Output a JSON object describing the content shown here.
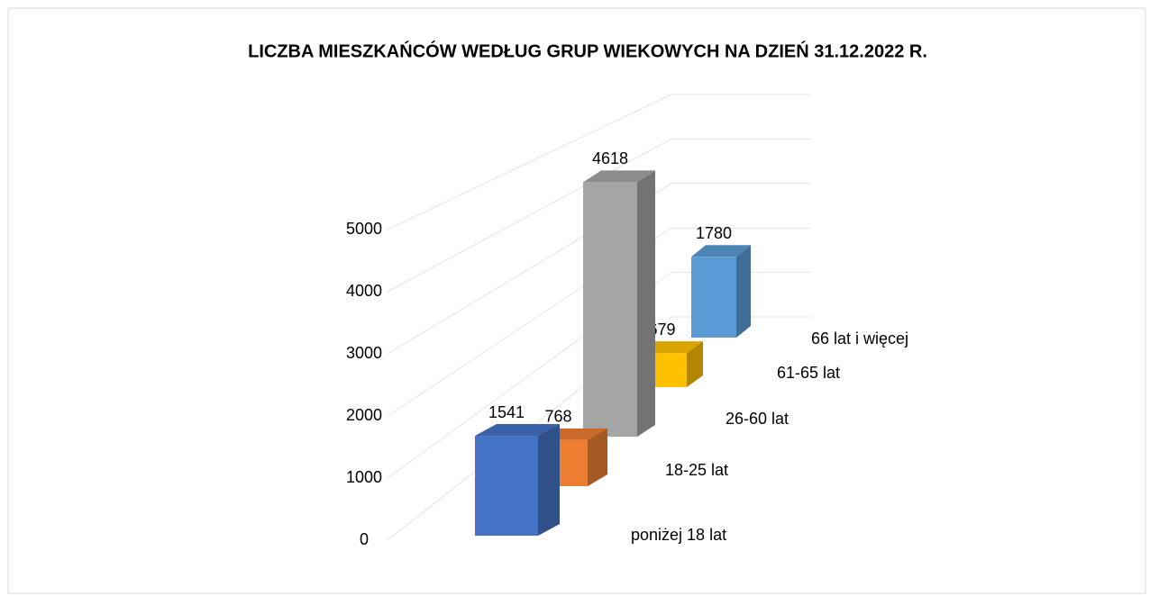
{
  "chart_data": {
    "type": "bar3d",
    "title": "LICZBA MIESZKAŃCÓW  WEDŁUG GRUP WIEKOWYCH NA DZIEŃ 31.12.2022 R.",
    "categories": [
      "poniżej 18 lat",
      "18-25 lat",
      "26-60 lat",
      "61-65 lat",
      "66 lat i więcej"
    ],
    "values": [
      1541,
      768,
      4618,
      679,
      1780
    ],
    "colors": [
      "#4472c4",
      "#ed7d31",
      "#a5a5a5",
      "#ffc000",
      "#5b9bd5"
    ],
    "ylim": [
      0,
      5000
    ],
    "yticks": [
      0,
      1000,
      2000,
      3000,
      4000,
      5000
    ],
    "grid": true
  }
}
